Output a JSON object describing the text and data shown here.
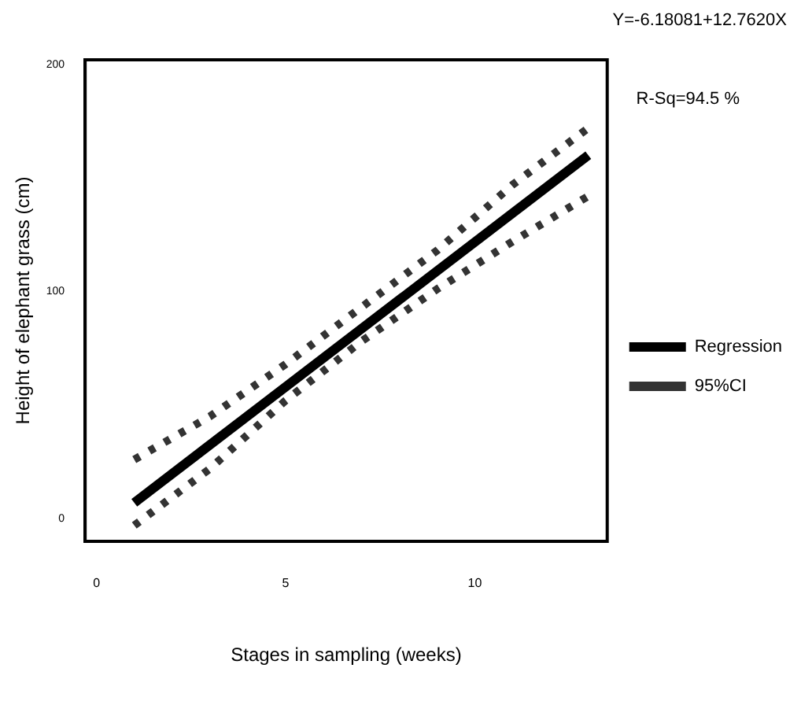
{
  "chart_data": {
    "type": "line",
    "xlabel": "Stages in sampling (weeks)",
    "ylabel": "Height of elephant grass (cm)",
    "xlim": [
      -0.3,
      13.5
    ],
    "xticks": [
      0,
      5,
      10
    ],
    "ylim": [
      -10,
      202
    ],
    "yticks": [
      0,
      100,
      200
    ],
    "annotations": [
      "Y=-6.18081+12.7620X",
      "R-Sq=94.5 %"
    ],
    "legend": "right",
    "grid": false,
    "marker": "none",
    "series": [
      {
        "name": "Regression",
        "color": "#000000",
        "line_style": "solid",
        "x": [
          1,
          13
        ],
        "values": [
          7,
          160
        ]
      },
      {
        "name": "95%CI",
        "color": "#333333",
        "line_style": "dotted",
        "x": [
          1,
          3,
          5,
          7,
          9,
          11,
          13
        ],
        "values": [
          26,
          45,
          68,
          93,
          118,
          147,
          172
        ]
      },
      {
        "color": "#333333",
        "line_style": "dotted",
        "x": [
          1,
          3,
          5,
          7,
          9,
          11,
          13
        ],
        "values": [
          -3,
          22,
          52,
          78,
          101,
          122,
          142
        ]
      }
    ]
  }
}
